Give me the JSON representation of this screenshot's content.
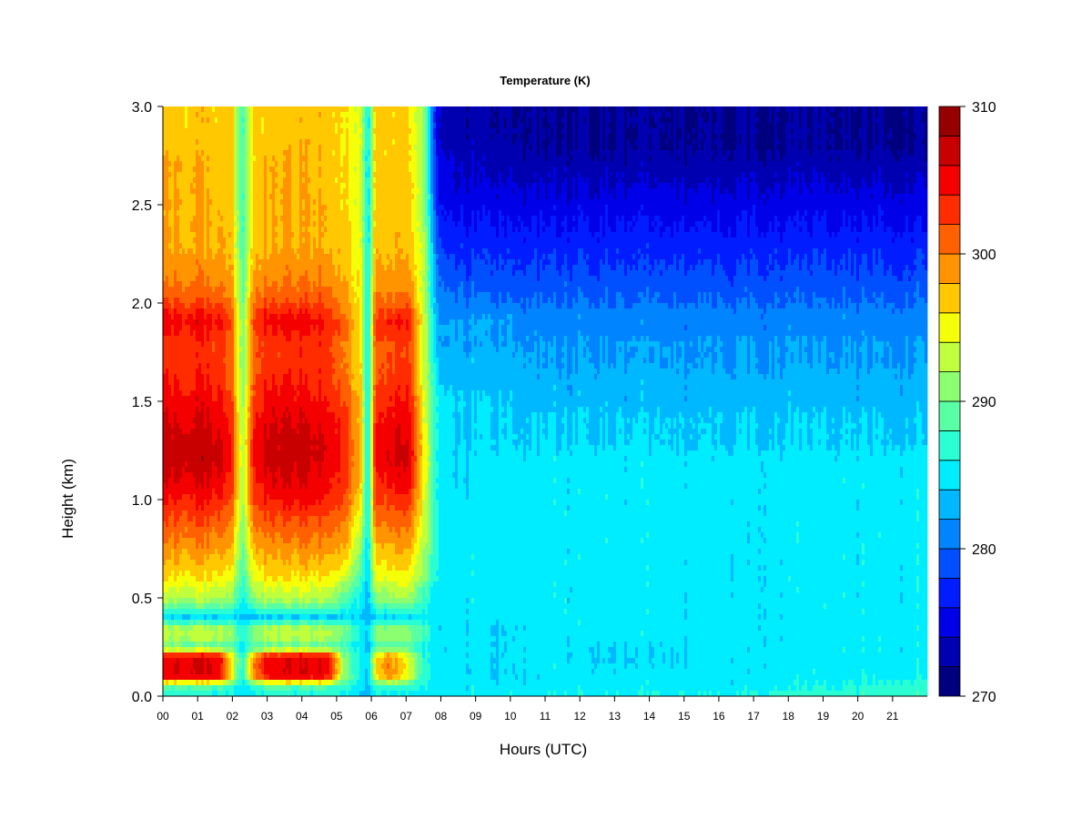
{
  "chart_data": {
    "type": "heatmap",
    "title": "Temperature (K)",
    "xlabel": "Hours (UTC)",
    "ylabel": "Height (km)",
    "x_range": [
      0,
      22
    ],
    "y_range": [
      0.0,
      3.0
    ],
    "x_ticks": [
      "00",
      "01",
      "02",
      "03",
      "04",
      "05",
      "06",
      "07",
      "08",
      "09",
      "10",
      "11",
      "12",
      "13",
      "14",
      "15",
      "16",
      "17",
      "18",
      "19",
      "20",
      "21"
    ],
    "y_ticks": [
      "0.0",
      "0.5",
      "1.0",
      "1.5",
      "2.0",
      "2.5",
      "3.0"
    ],
    "colorbar": {
      "min": 270,
      "max": 310,
      "ticks": [
        "270",
        "280",
        "290",
        "300",
        "310"
      ],
      "colors": [
        "#00007f",
        "#0000b0",
        "#0000e8",
        "#001cff",
        "#0050ff",
        "#0084ff",
        "#00b8ff",
        "#00ecff",
        "#2affd4",
        "#58ffa4",
        "#8cff70",
        "#c0ff3c",
        "#f4ff08",
        "#ffc800",
        "#ff9400",
        "#ff6000",
        "#ff2c00",
        "#f40000",
        "#c80000",
        "#960000"
      ]
    },
    "grid_h_km": [
      0.0,
      0.05,
      0.1,
      0.15,
      0.2,
      0.25,
      0.3,
      0.35,
      0.4,
      0.45,
      0.5,
      0.55,
      0.6,
      0.7,
      0.8,
      0.9,
      1.0,
      1.1,
      1.2,
      1.3,
      1.4,
      1.5,
      1.6,
      1.7,
      1.8,
      1.85,
      1.9,
      1.95,
      2.0,
      2.1,
      2.2,
      2.3,
      2.4,
      2.5,
      2.6,
      2.7,
      2.8,
      2.9,
      3.0
    ],
    "profiles": [
      {
        "hour": 0.0,
        "t": [
          286,
          289,
          305,
          305,
          305,
          289,
          293,
          292,
          284,
          289,
          293,
          294,
          296,
          298,
          300,
          302,
          304,
          306,
          307,
          307,
          306,
          305,
          304,
          303,
          303,
          304,
          305,
          304,
          302,
          300,
          299,
          298,
          298,
          298,
          298,
          298,
          297,
          297,
          297
        ]
      },
      {
        "hour": 0.5,
        "t": [
          286,
          289,
          306,
          306,
          306,
          289,
          293,
          292,
          284,
          289,
          293,
          294,
          296,
          298,
          300,
          302,
          304,
          306,
          307,
          307,
          306,
          305,
          304,
          303,
          303,
          304,
          305,
          304,
          302,
          300,
          299,
          298,
          298,
          298,
          298,
          298,
          297,
          297,
          297
        ]
      },
      {
        "hour": 1.0,
        "t": [
          286,
          289,
          306,
          306,
          306,
          289,
          293,
          292,
          284,
          289,
          293,
          294,
          296,
          298,
          300,
          302,
          304,
          306,
          307,
          307,
          306,
          305,
          304,
          303,
          303,
          304,
          305,
          304,
          302,
          300,
          299,
          298,
          298,
          298,
          298,
          298,
          297,
          297,
          297
        ]
      },
      {
        "hour": 1.6,
        "t": [
          286,
          289,
          306,
          306,
          306,
          289,
          293,
          292,
          284,
          289,
          293,
          294,
          296,
          298,
          300,
          302,
          304,
          306,
          307,
          307,
          306,
          305,
          304,
          303,
          303,
          304,
          305,
          304,
          302,
          300,
          299,
          298,
          298,
          298,
          297,
          297,
          297,
          297,
          297
        ]
      },
      {
        "hour": 2.0,
        "t": [
          285,
          287,
          294,
          294,
          294,
          288,
          291,
          290,
          284,
          288,
          291,
          292,
          294,
          296,
          298,
          299,
          301,
          302,
          303,
          303,
          302,
          301,
          300,
          300,
          300,
          300,
          301,
          300,
          299,
          298,
          297,
          297,
          297,
          296,
          296,
          296,
          296,
          296,
          296
        ]
      },
      {
        "hour": 2.3,
        "t": [
          284,
          285,
          287,
          287,
          287,
          285,
          286,
          286,
          284,
          285,
          286,
          287,
          288,
          289,
          290,
          291,
          292,
          292,
          292,
          292,
          292,
          291,
          291,
          290,
          290,
          290,
          291,
          290,
          290,
          289,
          289,
          288,
          288,
          288,
          288,
          288,
          288,
          288,
          288
        ]
      },
      {
        "hour": 2.6,
        "t": [
          285,
          288,
          300,
          300,
          300,
          288,
          292,
          291,
          284,
          288,
          292,
          293,
          295,
          297,
          299,
          301,
          303,
          304,
          305,
          305,
          304,
          303,
          302,
          302,
          302,
          302,
          303,
          302,
          301,
          299,
          298,
          298,
          297,
          297,
          297,
          297,
          297,
          297,
          297
        ]
      },
      {
        "hour": 3.0,
        "t": [
          286,
          289,
          305,
          305,
          305,
          289,
          293,
          292,
          284,
          289,
          293,
          294,
          296,
          298,
          300,
          302,
          304,
          306,
          307,
          307,
          306,
          305,
          304,
          303,
          303,
          304,
          305,
          304,
          302,
          300,
          299,
          298,
          298,
          298,
          298,
          298,
          297,
          297,
          297
        ]
      },
      {
        "hour": 4.0,
        "t": [
          286,
          289,
          306,
          306,
          306,
          289,
          293,
          292,
          284,
          289,
          293,
          294,
          296,
          298,
          300,
          302,
          305,
          306,
          307,
          307,
          306,
          305,
          304,
          303,
          303,
          304,
          305,
          304,
          302,
          300,
          299,
          298,
          298,
          298,
          298,
          298,
          298,
          297,
          297
        ]
      },
      {
        "hour": 4.8,
        "t": [
          286,
          289,
          305,
          305,
          305,
          289,
          293,
          292,
          284,
          289,
          293,
          294,
          296,
          298,
          300,
          302,
          304,
          305,
          306,
          306,
          305,
          304,
          303,
          303,
          303,
          304,
          304,
          303,
          302,
          300,
          299,
          298,
          298,
          298,
          297,
          297,
          297,
          297,
          297
        ]
      },
      {
        "hour": 5.2,
        "t": [
          285,
          287,
          291,
          291,
          291,
          287,
          290,
          290,
          284,
          287,
          289,
          291,
          294,
          297,
          299,
          300,
          302,
          303,
          303,
          303,
          303,
          302,
          301,
          300,
          300,
          301,
          301,
          300,
          299,
          298,
          297,
          297,
          297,
          296,
          296,
          296,
          296,
          296,
          296
        ]
      },
      {
        "hour": 5.7,
        "t": [
          284,
          285,
          286,
          286,
          286,
          285,
          286,
          286,
          284,
          285,
          286,
          287,
          288,
          290,
          292,
          294,
          296,
          297,
          298,
          298,
          297,
          297,
          296,
          296,
          296,
          296,
          296,
          296,
          295,
          295,
          295,
          294,
          294,
          294,
          294,
          294,
          294,
          294,
          294
        ]
      },
      {
        "hour": 5.9,
        "t": [
          283,
          283,
          283,
          283,
          283,
          283,
          283,
          283,
          283,
          283,
          283,
          283,
          283,
          284,
          284,
          284,
          284,
          284,
          284,
          284,
          284,
          284,
          284,
          284,
          284,
          284,
          284,
          284,
          284,
          284,
          284,
          284,
          284,
          284,
          284,
          284,
          284,
          284,
          284
        ]
      },
      {
        "hour": 6.1,
        "t": [
          285,
          287,
          295,
          295,
          295,
          287,
          290,
          290,
          284,
          287,
          290,
          292,
          294,
          296,
          298,
          300,
          302,
          303,
          304,
          304,
          303,
          302,
          301,
          301,
          301,
          302,
          302,
          301,
          300,
          299,
          298,
          297,
          297,
          297,
          297,
          297,
          297,
          297,
          297
        ]
      },
      {
        "hour": 6.5,
        "t": [
          285,
          288,
          300,
          300,
          300,
          288,
          292,
          291,
          284,
          288,
          292,
          293,
          295,
          297,
          299,
          301,
          303,
          305,
          306,
          306,
          305,
          304,
          303,
          302,
          302,
          303,
          304,
          303,
          301,
          299,
          298,
          298,
          297,
          297,
          297,
          297,
          297,
          297,
          297
        ]
      },
      {
        "hour": 7.1,
        "t": [
          285,
          287,
          294,
          294,
          294,
          288,
          291,
          290,
          284,
          288,
          292,
          293,
          295,
          297,
          299,
          301,
          303,
          305,
          306,
          306,
          305,
          304,
          303,
          302,
          302,
          303,
          304,
          303,
          301,
          299,
          298,
          297,
          297,
          297,
          297,
          296,
          296,
          296,
          296
        ]
      },
      {
        "hour": 7.5,
        "t": [
          285,
          286,
          287,
          287,
          287,
          286,
          288,
          288,
          285,
          287,
          288,
          289,
          291,
          292,
          293,
          294,
          295,
          295,
          296,
          296,
          295,
          295,
          294,
          294,
          294,
          294,
          294,
          294,
          293,
          293,
          293,
          293,
          292,
          292,
          292,
          292,
          292,
          292,
          292
        ]
      },
      {
        "hour": 7.9,
        "t": [
          285,
          285,
          285,
          285,
          285,
          285,
          285,
          285,
          285,
          285,
          285,
          285,
          286,
          286,
          286,
          286,
          286,
          286,
          286,
          286,
          286,
          286,
          285,
          284,
          283,
          283,
          283,
          282,
          282,
          281,
          280,
          279,
          278,
          277,
          276,
          276,
          275,
          275,
          275
        ]
      },
      {
        "hour": 8.4,
        "t": [
          285,
          285,
          285,
          285,
          285,
          285,
          285,
          285,
          285,
          285,
          285,
          285,
          285,
          285,
          285,
          285,
          285,
          284,
          284,
          284,
          284,
          284,
          283,
          283,
          282,
          282,
          282,
          281,
          281,
          279,
          278,
          277,
          276,
          275,
          274,
          274,
          273,
          273,
          273
        ]
      },
      {
        "hour": 9.5,
        "t": [
          285,
          285,
          284,
          284,
          284,
          284,
          284,
          284,
          285,
          285,
          285,
          285,
          285,
          285,
          285,
          285,
          285,
          285,
          285,
          284,
          284,
          284,
          283,
          283,
          282,
          282,
          282,
          281,
          280,
          279,
          278,
          277,
          276,
          275,
          274,
          273,
          273,
          272,
          272
        ]
      },
      {
        "hour": 11.0,
        "t": [
          286,
          285,
          285,
          285,
          285,
          285,
          285,
          285,
          285,
          285,
          285,
          285,
          285,
          285,
          285,
          285,
          285,
          285,
          285,
          284,
          284,
          283,
          283,
          282,
          282,
          281,
          281,
          281,
          280,
          279,
          278,
          277,
          276,
          275,
          274,
          273,
          272,
          272,
          272
        ]
      },
      {
        "hour": 13.5,
        "t": [
          286,
          285,
          285,
          284,
          284,
          284,
          285,
          285,
          285,
          285,
          285,
          285,
          285,
          285,
          285,
          285,
          285,
          285,
          285,
          284,
          284,
          283,
          283,
          282,
          282,
          281,
          281,
          281,
          280,
          279,
          278,
          277,
          276,
          275,
          274,
          273,
          272,
          272,
          272
        ]
      },
      {
        "hour": 16.0,
        "t": [
          286,
          285,
          285,
          285,
          285,
          285,
          285,
          285,
          285,
          285,
          285,
          285,
          285,
          285,
          285,
          285,
          285,
          285,
          285,
          284,
          284,
          283,
          283,
          282,
          282,
          281,
          281,
          281,
          280,
          279,
          278,
          277,
          276,
          275,
          274,
          273,
          272,
          272,
          272
        ]
      },
      {
        "hour": 19.0,
        "t": [
          287,
          286,
          285,
          285,
          285,
          285,
          285,
          285,
          285,
          285,
          285,
          285,
          285,
          285,
          285,
          285,
          285,
          285,
          285,
          284,
          284,
          283,
          283,
          282,
          282,
          281,
          281,
          281,
          280,
          279,
          278,
          277,
          276,
          275,
          274,
          273,
          272,
          272,
          272
        ]
      },
      {
        "hour": 22.0,
        "t": [
          288,
          287,
          286,
          285,
          285,
          285,
          285,
          285,
          285,
          285,
          285,
          285,
          285,
          285,
          285,
          285,
          285,
          285,
          285,
          284,
          284,
          283,
          283,
          282,
          282,
          281,
          281,
          281,
          280,
          279,
          278,
          277,
          276,
          275,
          274,
          273,
          272,
          272,
          272
        ]
      }
    ]
  }
}
